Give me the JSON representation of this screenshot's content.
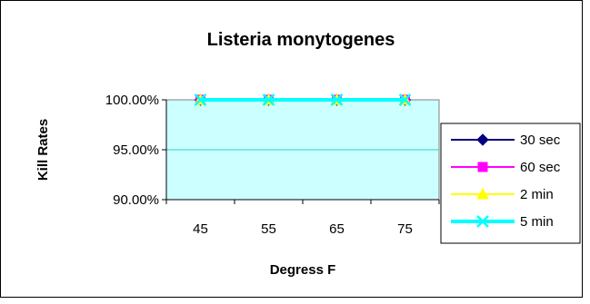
{
  "chart_data": {
    "type": "line",
    "title": "Listeria monytogenes",
    "xlabel": "Degress F",
    "ylabel": "Kill Rates",
    "categories": [
      "45",
      "55",
      "65",
      "75"
    ],
    "ylim": [
      0.9,
      1.0
    ],
    "yticks": [
      0.9,
      0.95,
      1.0
    ],
    "ytick_labels": [
      "90.00%",
      "95.00%",
      "100.00%"
    ],
    "grid": true,
    "legend_position": "right",
    "plot_background": "#ccffff",
    "series": [
      {
        "name": "30 sec",
        "values": [
          1.0,
          1.0,
          1.0,
          1.0
        ],
        "color": "#000080",
        "marker": "diamond",
        "line_width": 2
      },
      {
        "name": "60 sec",
        "values": [
          1.0,
          1.0,
          1.0,
          1.0
        ],
        "color": "#ff00ff",
        "marker": "square",
        "line_width": 2
      },
      {
        "name": "2 min",
        "values": [
          1.0,
          1.0,
          1.0,
          1.0
        ],
        "color": "#ffff00",
        "marker": "triangle",
        "line_width": 2
      },
      {
        "name": "5 min",
        "values": [
          1.0,
          1.0,
          1.0,
          1.0
        ],
        "color": "#00ffff",
        "marker": "x",
        "line_width": 4
      }
    ]
  }
}
